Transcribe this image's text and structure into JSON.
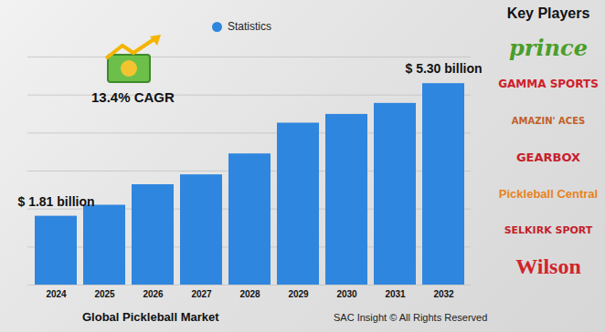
{
  "chart_data": {
    "type": "bar",
    "title": "Global Pickleball Market",
    "categories": [
      "2024",
      "2025",
      "2026",
      "2027",
      "2028",
      "2029",
      "2030",
      "2031",
      "2032"
    ],
    "series": [
      {
        "name": "Statistics",
        "color": "#2f86de",
        "values": [
          1.81,
          2.1,
          2.64,
          2.9,
          3.45,
          4.26,
          4.49,
          4.78,
          5.3
        ],
        "value_labels": [
          "$ 1.81 billion",
          null,
          null,
          null,
          null,
          null,
          null,
          null,
          "$ 5.30 billion"
        ]
      }
    ],
    "data_labels": true,
    "annotations": [
      "13.4% CAGR"
    ],
    "ylim": [
      0,
      6
    ],
    "yticks": [
      0,
      1,
      2,
      3,
      4,
      5,
      6
    ],
    "grid": true,
    "tick_labels": "x",
    "legend": "top"
  },
  "key_players": {
    "title": "Key Players",
    "items": [
      "prince",
      "GAMMA SPORTS",
      "AMAZIN' ACES",
      "GEARBOX",
      "Pickleball Central",
      "SELKIRK SPORT",
      "Wilson"
    ]
  },
  "source": "SAC Insight © All Rights Reserved"
}
